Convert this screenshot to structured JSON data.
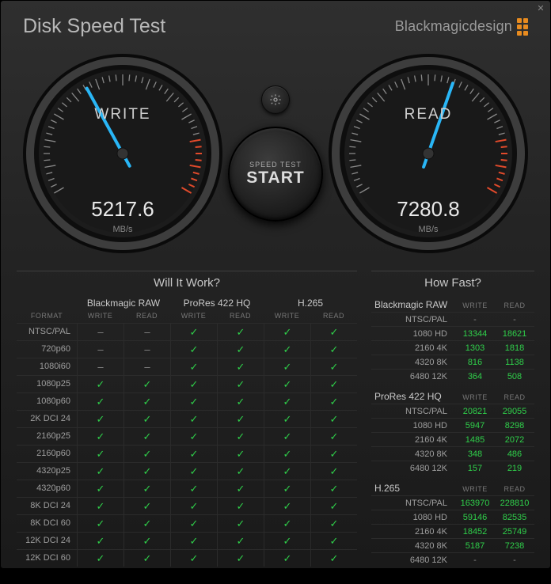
{
  "window": {
    "title": "Disk Speed Test",
    "brand": "Blackmagicdesign"
  },
  "gear": {
    "title": "Settings"
  },
  "start_button": {
    "small": "SPEED TEST",
    "big": "START"
  },
  "gauges": {
    "unit": "MB/s",
    "write": {
      "label": "WRITE",
      "value": "5217.6",
      "angle_deg": 38
    },
    "read": {
      "label": "READ",
      "value": "7280.8",
      "angle_deg": 58
    },
    "colors": {
      "rim_outer": "#0a0a0a",
      "rim_light": "#3d3d3d",
      "face": "#191919",
      "ticks": "#888888",
      "ticks_red": "#e24a2b",
      "needle": "#29b6f6"
    }
  },
  "will_it_work": {
    "title": "Will It Work?",
    "format_header": "FORMAT",
    "sub_write": "WRITE",
    "sub_read": "READ",
    "codecs": [
      "Blackmagic RAW",
      "ProRes 422 HQ",
      "H.265"
    ],
    "rows": [
      {
        "label": "NTSC/PAL",
        "cells": [
          "dash",
          "dash",
          "check",
          "check",
          "check",
          "check"
        ]
      },
      {
        "label": "720p60",
        "cells": [
          "dash",
          "dash",
          "check",
          "check",
          "check",
          "check"
        ]
      },
      {
        "label": "1080i60",
        "cells": [
          "dash",
          "dash",
          "check",
          "check",
          "check",
          "check"
        ]
      },
      {
        "label": "1080p25",
        "cells": [
          "check",
          "check",
          "check",
          "check",
          "check",
          "check"
        ]
      },
      {
        "label": "1080p60",
        "cells": [
          "check",
          "check",
          "check",
          "check",
          "check",
          "check"
        ]
      },
      {
        "label": "2K DCI 24",
        "cells": [
          "check",
          "check",
          "check",
          "check",
          "check",
          "check"
        ]
      },
      {
        "label": "2160p25",
        "cells": [
          "check",
          "check",
          "check",
          "check",
          "check",
          "check"
        ]
      },
      {
        "label": "2160p60",
        "cells": [
          "check",
          "check",
          "check",
          "check",
          "check",
          "check"
        ]
      },
      {
        "label": "4320p25",
        "cells": [
          "check",
          "check",
          "check",
          "check",
          "check",
          "check"
        ]
      },
      {
        "label": "4320p60",
        "cells": [
          "check",
          "check",
          "check",
          "check",
          "check",
          "check"
        ]
      },
      {
        "label": "8K DCI 24",
        "cells": [
          "check",
          "check",
          "check",
          "check",
          "check",
          "check"
        ]
      },
      {
        "label": "8K DCI 60",
        "cells": [
          "check",
          "check",
          "check",
          "check",
          "check",
          "check"
        ]
      },
      {
        "label": "12K DCI 24",
        "cells": [
          "check",
          "check",
          "check",
          "check",
          "check",
          "check"
        ]
      },
      {
        "label": "12K DCI 60",
        "cells": [
          "check",
          "check",
          "check",
          "check",
          "check",
          "check"
        ]
      }
    ]
  },
  "how_fast": {
    "title": "How Fast?",
    "col_write": "WRITE",
    "col_read": "READ",
    "sections": [
      {
        "codec": "Blackmagic RAW",
        "rows": [
          {
            "label": "NTSC/PAL",
            "write": "-",
            "read": "-"
          },
          {
            "label": "1080 HD",
            "write": "13344",
            "read": "18621"
          },
          {
            "label": "2160 4K",
            "write": "1303",
            "read": "1818"
          },
          {
            "label": "4320 8K",
            "write": "816",
            "read": "1138"
          },
          {
            "label": "6480 12K",
            "write": "364",
            "read": "508"
          }
        ]
      },
      {
        "codec": "ProRes 422 HQ",
        "rows": [
          {
            "label": "NTSC/PAL",
            "write": "20821",
            "read": "29055"
          },
          {
            "label": "1080 HD",
            "write": "5947",
            "read": "8298"
          },
          {
            "label": "2160 4K",
            "write": "1485",
            "read": "2072"
          },
          {
            "label": "4320 8K",
            "write": "348",
            "read": "486"
          },
          {
            "label": "6480 12K",
            "write": "157",
            "read": "219"
          }
        ]
      },
      {
        "codec": "H.265",
        "rows": [
          {
            "label": "NTSC/PAL",
            "write": "163970",
            "read": "228810"
          },
          {
            "label": "1080 HD",
            "write": "59146",
            "read": "82535"
          },
          {
            "label": "2160 4K",
            "write": "18452",
            "read": "25749"
          },
          {
            "label": "4320 8K",
            "write": "5187",
            "read": "7238"
          },
          {
            "label": "6480 12K",
            "write": "-",
            "read": "-"
          }
        ]
      }
    ]
  }
}
